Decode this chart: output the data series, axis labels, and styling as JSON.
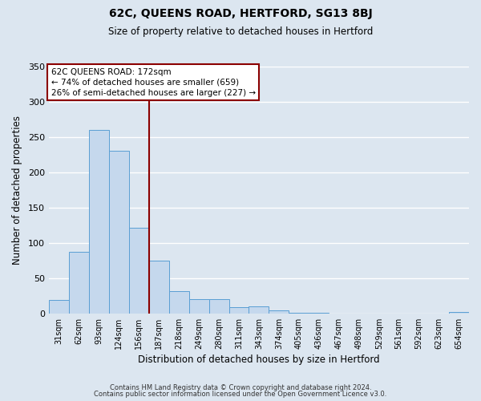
{
  "title": "62C, QUEENS ROAD, HERTFORD, SG13 8BJ",
  "subtitle": "Size of property relative to detached houses in Hertford",
  "xlabel": "Distribution of detached houses by size in Hertford",
  "ylabel": "Number of detached properties",
  "footer_line1": "Contains HM Land Registry data © Crown copyright and database right 2024.",
  "footer_line2": "Contains public sector information licensed under the Open Government Licence v3.0.",
  "bar_labels": [
    "31sqm",
    "62sqm",
    "93sqm",
    "124sqm",
    "156sqm",
    "187sqm",
    "218sqm",
    "249sqm",
    "280sqm",
    "311sqm",
    "343sqm",
    "374sqm",
    "405sqm",
    "436sqm",
    "467sqm",
    "498sqm",
    "529sqm",
    "561sqm",
    "592sqm",
    "623sqm",
    "654sqm"
  ],
  "bar_values": [
    19,
    87,
    260,
    231,
    122,
    75,
    32,
    20,
    20,
    9,
    10,
    4,
    1,
    1,
    0,
    0,
    0,
    0,
    0,
    0,
    2
  ],
  "bar_color": "#c5d8ed",
  "bar_edge_color": "#5a9fd4",
  "vline_index": 4.5,
  "vline_color": "#8b0000",
  "ylim": [
    0,
    350
  ],
  "yticks": [
    0,
    50,
    100,
    150,
    200,
    250,
    300,
    350
  ],
  "annotation_title": "62C QUEENS ROAD: 172sqm",
  "annotation_line2": "← 74% of detached houses are smaller (659)",
  "annotation_line3": "26% of semi-detached houses are larger (227) →",
  "annotation_box_color": "#8b0000",
  "background_color": "#dce6f0",
  "grid_color": "#ffffff"
}
